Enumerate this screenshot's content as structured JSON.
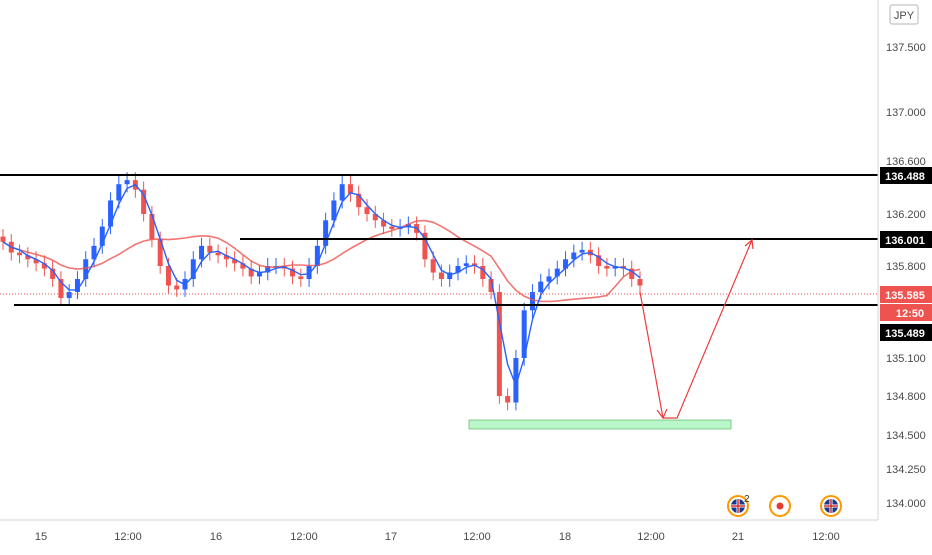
{
  "currency_button": "JPY",
  "chart_data": {
    "type": "candlestick",
    "y_axis": {
      "ticks": [
        "137.500",
        "137.000",
        "136.600",
        "136.200",
        "135.800",
        "135.100",
        "134.800",
        "134.500",
        "134.250",
        "134.000"
      ]
    },
    "x_axis": {
      "ticks": [
        "15",
        "12:00",
        "16",
        "12:00",
        "17",
        "12:00",
        "18",
        "12:00",
        "21",
        "12:00"
      ]
    },
    "price_labels": {
      "upper_level": "136.488",
      "mid_level": "136.001",
      "current_price": "135.585",
      "countdown": "12:50",
      "lower_level": "135.489"
    },
    "levels": [
      {
        "name": "resistance",
        "value": 136.488
      },
      {
        "name": "mid-range",
        "value": 136.001
      },
      {
        "name": "support",
        "value": 135.489
      }
    ],
    "target_zone": {
      "low": 134.55,
      "high": 134.62
    },
    "forecast_path": [
      135.585,
      134.6,
      136.001
    ],
    "series": [
      {
        "values": [
          135.98,
          135.9,
          135.88,
          135.85,
          135.82,
          135.78,
          135.7,
          135.55,
          135.6,
          135.7,
          135.85,
          135.95,
          136.1,
          136.3,
          136.42,
          136.45,
          136.38,
          136.2,
          136.0,
          135.8,
          135.65,
          135.62,
          135.7,
          135.85,
          135.95,
          135.9,
          135.88,
          135.85,
          135.82,
          135.78,
          135.72,
          135.75,
          135.8,
          135.8,
          135.78,
          135.72,
          135.7,
          135.8,
          135.95,
          136.15,
          136.3,
          136.42,
          136.35,
          136.25,
          136.2,
          136.15,
          136.1,
          136.08,
          136.1,
          136.12,
          136.05,
          135.85,
          135.75,
          135.7,
          135.75,
          135.8,
          135.82,
          135.8,
          135.7,
          135.6,
          134.8,
          134.75,
          135.1,
          135.45,
          135.6,
          135.68,
          135.72,
          135.78,
          135.85,
          135.9,
          135.92,
          135.88,
          135.8,
          135.78,
          135.8,
          135.78,
          135.7,
          135.65
        ]
      }
    ]
  },
  "event_markers": [
    {
      "icon": "uk-flag-icon",
      "count": "2"
    },
    {
      "icon": "record-icon",
      "count": ""
    },
    {
      "icon": "uk-flag-icon",
      "count": ""
    }
  ],
  "colors": {
    "up_candle": "#2962ff",
    "down_candle": "#ef5350",
    "ma_fast": "#2962ff",
    "ma_slow": "#ef5350",
    "level_line": "#000000",
    "target_zone": "#b9f6ca",
    "forecast_line": "#ef3b3b"
  }
}
